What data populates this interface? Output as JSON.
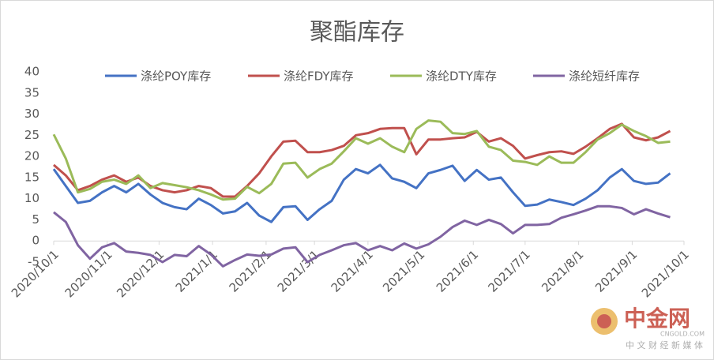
{
  "chart_data": {
    "type": "line",
    "title": "聚酯库存",
    "x": [
      "2020-10-01",
      "2020-10-08",
      "2020-10-15",
      "2020-10-22",
      "2020-10-29",
      "2020-11-05",
      "2020-11-12",
      "2020-11-19",
      "2020-11-26",
      "2020-12-03",
      "2020-12-10",
      "2020-12-17",
      "2020-12-24",
      "2020-12-31",
      "2021-01-07",
      "2021-01-14",
      "2021-01-21",
      "2021-01-28",
      "2021-02-04",
      "2021-02-11",
      "2021-02-18",
      "2021-02-25",
      "2021-03-04",
      "2021-03-11",
      "2021-03-18",
      "2021-03-25",
      "2021-04-01",
      "2021-04-08",
      "2021-04-15",
      "2021-04-22",
      "2021-04-29",
      "2021-05-06",
      "2021-05-13",
      "2021-05-20",
      "2021-05-27",
      "2021-06-03",
      "2021-06-10",
      "2021-06-17",
      "2021-06-24",
      "2021-07-01",
      "2021-07-08",
      "2021-07-15",
      "2021-07-22",
      "2021-07-29",
      "2021-08-05",
      "2021-08-12",
      "2021-08-19",
      "2021-08-26",
      "2021-09-02",
      "2021-09-09",
      "2021-09-16",
      "2021-09-23"
    ],
    "series": [
      {
        "name": "涤纶POY库存",
        "color": "#4472c4",
        "values": [
          17,
          13,
          9,
          9.5,
          11.5,
          13,
          11.5,
          13.5,
          11,
          9,
          8,
          7.5,
          10,
          8.5,
          6.5,
          7,
          9,
          6,
          4.5,
          8,
          8.2,
          5,
          7.5,
          9.5,
          14.5,
          17,
          16,
          18,
          14.8,
          14,
          12.5,
          16,
          16.8,
          17.8,
          14.2,
          16.8,
          14.5,
          15,
          11.5,
          8.3,
          8.6,
          9.8,
          9.2,
          8.5,
          10,
          12,
          15,
          17,
          14.2,
          13.5,
          13.8,
          16
        ]
      },
      {
        "name": "涤纶FDY库存",
        "color": "#c0504d",
        "values": [
          18,
          15.5,
          12,
          13,
          14.5,
          15.5,
          14,
          15,
          13,
          12,
          11.5,
          12,
          13,
          12.5,
          10.5,
          10.5,
          13,
          16,
          20,
          23.5,
          23.7,
          21,
          21,
          21.5,
          22.5,
          25,
          25.5,
          26.5,
          26.7,
          26.7,
          20.5,
          24,
          24,
          24.3,
          24.5,
          25.8,
          23.5,
          24.3,
          22.5,
          19.5,
          20.3,
          21,
          21.2,
          20.6,
          22.3,
          24.3,
          26.5,
          27.7,
          24.5,
          23.8,
          24.5,
          26
        ]
      },
      {
        "name": "涤纶DTY库存",
        "color": "#9bbb59",
        "values": [
          25.2,
          19.5,
          11.5,
          12.3,
          14,
          14.5,
          13.5,
          15.5,
          12.5,
          13.7,
          13.2,
          12.7,
          12,
          11,
          9.8,
          10,
          12.8,
          11.3,
          13.5,
          18.3,
          18.5,
          15,
          17,
          18.3,
          21.2,
          24.3,
          23,
          24.3,
          22.3,
          21,
          26.5,
          28.5,
          28.2,
          25.5,
          25.3,
          26,
          22.3,
          21.5,
          19,
          18.7,
          18,
          20,
          18.5,
          18.5,
          21,
          24,
          25.5,
          27.5,
          26,
          24.8,
          23.2,
          23.5
        ]
      },
      {
        "name": "涤纶短纤库存",
        "color": "#8064a2",
        "values": [
          6.8,
          4.5,
          -1,
          -4.2,
          -1.5,
          -0.5,
          -2.5,
          -2.8,
          -3.3,
          -5,
          -3.3,
          -3.6,
          -1.2,
          -3.2,
          -6,
          -4.5,
          -3.2,
          -3.5,
          -3.2,
          -1.8,
          -1.5,
          -5,
          -3.3,
          -2.2,
          -1,
          -0.5,
          -2.2,
          -1.2,
          -2.2,
          -0.6,
          -1.8,
          -0.8,
          1,
          3.3,
          4.8,
          3.8,
          5,
          4,
          1.8,
          3.8,
          3.8,
          4,
          5.5,
          6.3,
          7.2,
          8.2,
          8.2,
          7.8,
          6.3,
          7.5,
          6.5,
          5.6
        ]
      }
    ],
    "xlim": [
      "2020-10-01",
      "2021-10-01"
    ],
    "xticks": [
      {
        "value": "2020-10-01",
        "label": "2020/10/1"
      },
      {
        "value": "2020-11-01",
        "label": "2020/11/1"
      },
      {
        "value": "2020-12-01",
        "label": "2020/12/1"
      },
      {
        "value": "2021-01-01",
        "label": "2021/1/1"
      },
      {
        "value": "2021-02-01",
        "label": "2021/2/1"
      },
      {
        "value": "2021-03-01",
        "label": "2021/3/1"
      },
      {
        "value": "2021-04-01",
        "label": "2021/4/1"
      },
      {
        "value": "2021-05-01",
        "label": "2021/5/1"
      },
      {
        "value": "2021-06-01",
        "label": "2021/6/1"
      },
      {
        "value": "2021-07-01",
        "label": "2021/7/1"
      },
      {
        "value": "2021-08-01",
        "label": "2021/8/1"
      },
      {
        "value": "2021-09-01",
        "label": "2021/9/1"
      },
      {
        "value": "2021-10-01",
        "label": "2021/10/1"
      }
    ],
    "ylim": [
      -5,
      40
    ],
    "yticks": [
      -5,
      0,
      5,
      10,
      15,
      20,
      25,
      30,
      35,
      40
    ],
    "grid": false,
    "legend": "top"
  },
  "watermark": {
    "name": "中金网",
    "site": "CNGOLD.COM",
    "slogan": "中 文 财 经 新 媒 体"
  }
}
